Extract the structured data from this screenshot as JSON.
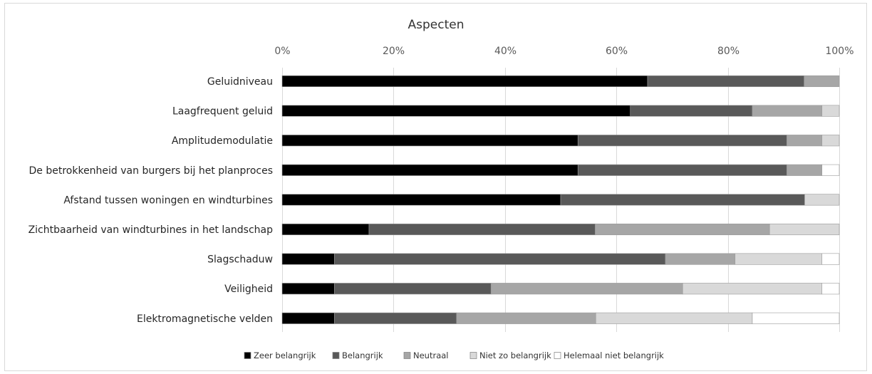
{
  "chart_data": {
    "type": "bar",
    "orientation": "horizontal",
    "stacked": "percent",
    "title": "Aspecten",
    "xlim": [
      0,
      100
    ],
    "x_ticks": [
      "0%",
      "20%",
      "40%",
      "60%",
      "80%",
      "100%"
    ],
    "categories": [
      "Geluidniveau",
      "Laagfrequent geluid",
      "Amplitudemodulatie",
      "De betrokkenheid van burgers bij het planproces",
      "Afstand tussen woningen en windturbines",
      "Zichtbaarheid van windturbines in het landschap",
      "Slagschaduw",
      "Veiligheid",
      "Elektromagnetische velden"
    ],
    "series": [
      {
        "name": "Zeer belangrijk",
        "color": "#000000",
        "values": [
          65.6,
          62.5,
          53.1,
          53.1,
          50.0,
          15.6,
          9.4,
          9.4,
          9.4
        ]
      },
      {
        "name": "Belangrijk",
        "color": "#595959",
        "values": [
          28.1,
          21.9,
          37.5,
          37.5,
          43.8,
          40.6,
          59.4,
          28.1,
          21.9
        ]
      },
      {
        "name": "Neutraal",
        "color": "#a6a6a6",
        "values": [
          6.3,
          12.5,
          6.3,
          6.3,
          0.0,
          31.3,
          12.5,
          34.4,
          25.0
        ]
      },
      {
        "name": "Niet zo belangrijk",
        "color": "#d9d9d9",
        "values": [
          0.0,
          3.1,
          3.1,
          0.0,
          6.2,
          12.5,
          15.6,
          25.0,
          28.1
        ]
      },
      {
        "name": "Helemaal niet belangrijk",
        "color": "#ffffff",
        "values": [
          0.0,
          0.0,
          0.0,
          3.1,
          0.0,
          0.0,
          3.1,
          3.1,
          15.6
        ]
      }
    ],
    "grid": true,
    "legend_position": "bottom"
  }
}
